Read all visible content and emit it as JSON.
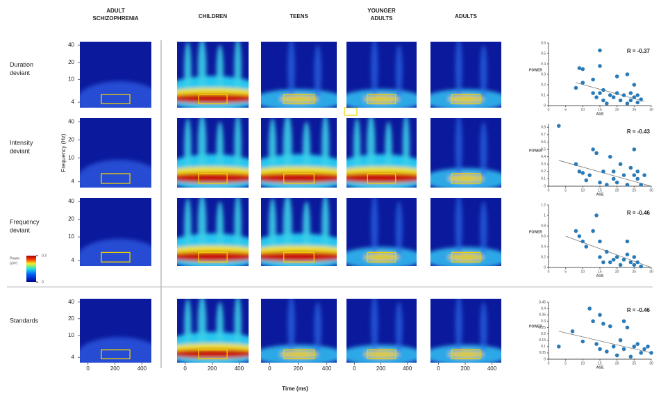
{
  "column_headers": [
    [
      "ADULT",
      "SCHIZOPHRENIA"
    ],
    [
      "CHILDREN"
    ],
    [
      "TEENS"
    ],
    [
      "YOUNGER",
      "ADULTS"
    ],
    [
      "ADULTS"
    ]
  ],
  "row_labels": [
    [
      "Duration",
      "deviant"
    ],
    [
      "Intensity",
      "deviant"
    ],
    [
      "Frequency",
      "deviant"
    ],
    [
      "Standards"
    ]
  ],
  "heatmap_axes": {
    "y_label": "Frequency (Hz)",
    "x_label": "Time (ms)",
    "yscale": "log",
    "ylim": [
      3.2,
      46
    ],
    "yticks": [
      40,
      20,
      10,
      4
    ],
    "xlim": [
      -60,
      470
    ],
    "xticks": [
      0,
      200,
      400
    ]
  },
  "colorbar": {
    "label_lines": [
      "Power",
      "(uV²)"
    ],
    "lim": [
      0,
      0.3
    ],
    "ticks": [
      0.3,
      0
    ]
  },
  "chart_data": [
    {
      "type": "scatter",
      "x_label": "AGE",
      "y_label": "POWER",
      "annotation": "R = -0.37",
      "color": "#2a7ab8",
      "xlim": [
        0,
        30
      ],
      "xticks": [
        0,
        5,
        10,
        15,
        20,
        25,
        30
      ],
      "ylim": [
        0,
        0.6
      ],
      "yticks": [
        0,
        0.1,
        0.2,
        0.3,
        0.4,
        0.5,
        0.6
      ],
      "x": [
        8,
        9,
        10,
        10,
        13,
        13,
        14,
        15,
        15,
        15,
        16,
        16,
        17,
        18,
        19,
        20,
        20,
        21,
        22,
        23,
        23,
        24,
        24,
        25,
        25,
        26,
        26,
        27
      ],
      "values": [
        0.17,
        0.36,
        0.35,
        0.22,
        0.25,
        0.12,
        0.08,
        0.53,
        0.38,
        0.12,
        0.05,
        0.15,
        0.02,
        0.1,
        0.08,
        0.28,
        0.12,
        0.05,
        0.1,
        0.3,
        0.02,
        0.12,
        0.05,
        0.2,
        0.08,
        0.03,
        0.1,
        0.06
      ],
      "trend": {
        "x": [
          8,
          28
        ],
        "values": [
          0.22,
          0.04
        ]
      }
    },
    {
      "type": "scatter",
      "x_label": "AGE",
      "y_label": "POWER",
      "annotation": "R = -0.43",
      "color": "#2a7ab8",
      "xlim": [
        0,
        30
      ],
      "xticks": [
        0,
        5,
        10,
        15,
        20,
        25,
        30
      ],
      "ylim": [
        0,
        0.85
      ],
      "yticks": [
        0,
        0.1,
        0.2,
        0.3,
        0.4,
        0.5,
        0.6,
        0.7,
        0.8
      ],
      "x": [
        3,
        8,
        9,
        10,
        11,
        12,
        13,
        14,
        15,
        16,
        17,
        18,
        19,
        19,
        20,
        21,
        22,
        23,
        24,
        25,
        25,
        26,
        26,
        27,
        28
      ],
      "values": [
        0.82,
        0.3,
        0.2,
        0.18,
        0.08,
        0.15,
        0.5,
        0.45,
        0.05,
        0.2,
        0.02,
        0.4,
        0.1,
        0.2,
        0.05,
        0.3,
        0.15,
        0.02,
        0.25,
        0.5,
        0.15,
        0.1,
        0.2,
        0.02,
        0.15
      ],
      "trend": {
        "x": [
          3,
          30
        ],
        "values": [
          0.35,
          0.0
        ]
      }
    },
    {
      "type": "scatter",
      "x_label": "AGE",
      "y_label": "POWER",
      "annotation": "R = -0.46",
      "color": "#2a7ab8",
      "xlim": [
        0,
        30
      ],
      "xticks": [
        0,
        5,
        10,
        15,
        20,
        25,
        30
      ],
      "ylim": [
        0,
        1.2
      ],
      "yticks": [
        0,
        0.2,
        0.4,
        0.6,
        0.8,
        1,
        1.2
      ],
      "x": [
        8,
        9,
        10,
        11,
        13,
        14,
        15,
        15,
        16,
        17,
        18,
        19,
        20,
        21,
        22,
        23,
        23,
        24,
        25,
        25,
        26,
        27
      ],
      "values": [
        0.7,
        0.6,
        0.5,
        0.4,
        0.7,
        1.0,
        0.5,
        0.2,
        0.1,
        0.3,
        0.1,
        0.15,
        0.2,
        0.05,
        0.15,
        0.5,
        0.25,
        0.1,
        0.2,
        0.05,
        0.1,
        0.02
      ],
      "trend": {
        "x": [
          5,
          30
        ],
        "values": [
          0.6,
          0.0
        ]
      }
    },
    {
      "type": "scatter",
      "x_label": "AGE",
      "y_label": "POWER",
      "annotation": "R = -0.46",
      "color": "#2a7ab8",
      "xlim": [
        0,
        30
      ],
      "xticks": [
        0,
        5,
        10,
        15,
        20,
        25,
        30
      ],
      "ylim": [
        0,
        0.45
      ],
      "yticks": [
        0,
        0.05,
        0.1,
        0.15,
        0.2,
        0.25,
        0.3,
        0.35,
        0.4,
        0.45
      ],
      "x": [
        3,
        7,
        10,
        12,
        13,
        14,
        15,
        16,
        17,
        18,
        19,
        20,
        21,
        22,
        23,
        24,
        25,
        26,
        27,
        28,
        29,
        30,
        15,
        22
      ],
      "values": [
        0.1,
        0.22,
        0.14,
        0.4,
        0.3,
        0.12,
        0.08,
        0.28,
        0.06,
        0.26,
        0.1,
        0.03,
        0.15,
        0.08,
        0.25,
        0.02,
        0.1,
        0.12,
        0.05,
        0.08,
        0.1,
        0.05,
        0.35,
        0.3
      ],
      "trend": {
        "x": [
          3,
          30
        ],
        "values": [
          0.22,
          0.05
        ]
      }
    }
  ]
}
